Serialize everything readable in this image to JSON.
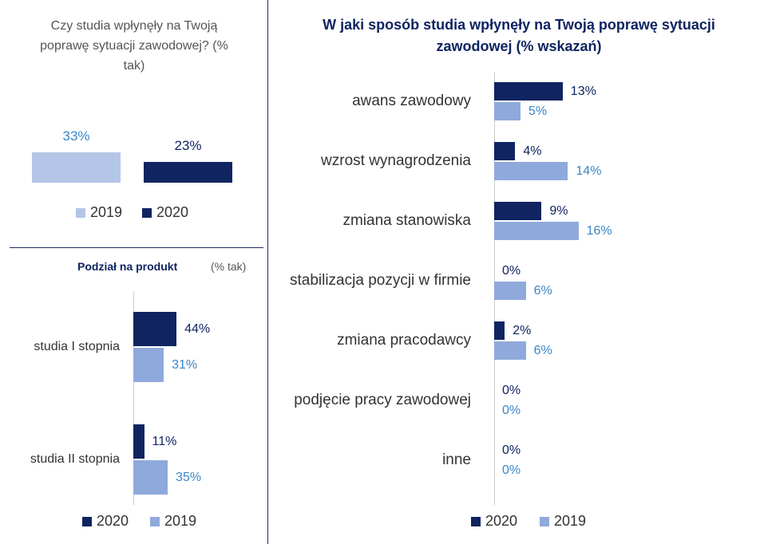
{
  "chart_data": [
    {
      "type": "bar",
      "title": "Czy studia wpłynęły na Twoją poprawę sytuacji zawodowej? (% tak)",
      "categories": [
        "2019",
        "2020"
      ],
      "values": [
        33,
        23
      ],
      "value_labels": [
        "33%",
        "23%"
      ],
      "colors": [
        "#b4c6e7",
        "#0f2461"
      ],
      "label_colors": [
        "#3a86c8",
        "#0f2461"
      ]
    },
    {
      "type": "hbar",
      "title": "Podział na produkt",
      "subtitle": "(% tak)",
      "categories": [
        "studia I stopnia",
        "studia II stopnia"
      ],
      "series": [
        {
          "name": "2020",
          "color": "#0f2461",
          "values": [
            44,
            11
          ],
          "value_labels": [
            "44%",
            "11%"
          ]
        },
        {
          "name": "2019",
          "color": "#8fa9dc",
          "values": [
            31,
            35
          ],
          "value_labels": [
            "31%",
            "35%"
          ]
        }
      ]
    },
    {
      "type": "hbar",
      "title": "W jaki sposób studia wpłynęły na Twoją poprawę sytuacji zawodowej (% wskazań)",
      "categories": [
        "awans zawodowy",
        "wzrost wynagrodzenia",
        "zmiana stanowiska",
        "stabilizacja pozycji w firmie",
        "zmiana pracodawcy",
        "podjęcie pracy zawodowej",
        "inne"
      ],
      "series": [
        {
          "name": "2020",
          "color": "#0f2461",
          "values": [
            13,
            4,
            9,
            0,
            2,
            0,
            0
          ],
          "value_labels": [
            "13%",
            "4%",
            "9%",
            "0%",
            "2%",
            "0%",
            "0%"
          ]
        },
        {
          "name": "2019",
          "color": "#8fa9dc",
          "values": [
            5,
            14,
            16,
            6,
            6,
            0,
            0
          ],
          "value_labels": [
            "5%",
            "14%",
            "16%",
            "6%",
            "6%",
            "0%",
            "0%"
          ]
        }
      ]
    }
  ]
}
